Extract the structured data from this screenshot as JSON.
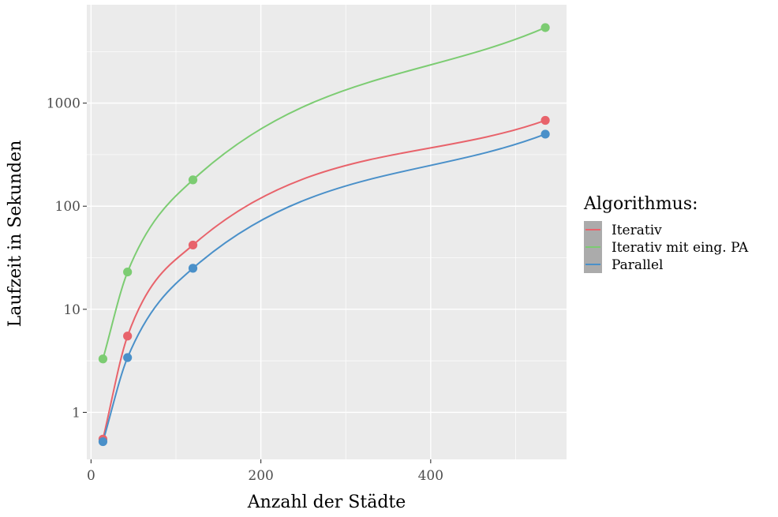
{
  "chart_data": {
    "type": "line",
    "xlabel": "Anzahl der Städte",
    "ylabel": "Laufzeit in Sekunden",
    "y_scale": "log10",
    "xlim": [
      -5,
      560
    ],
    "ylim": [
      0.35,
      9000
    ],
    "x_ticks": [
      0,
      200,
      400
    ],
    "x_tick_labels": [
      "0",
      "200",
      "400"
    ],
    "y_ticks": [
      1,
      10,
      100,
      1000
    ],
    "y_tick_labels": [
      "1",
      "10",
      "100",
      "1000"
    ],
    "grid": true,
    "legend": {
      "title": "Algorithmus:",
      "position": "right"
    },
    "series": [
      {
        "name": "Iterativ",
        "color": "#E8636B",
        "x": [
          14,
          43,
          120,
          535
        ],
        "y": [
          0.55,
          5.5,
          42,
          680
        ]
      },
      {
        "name": "Iterativ mit eing. PA",
        "color": "#7CCC72",
        "x": [
          14,
          43,
          120,
          535
        ],
        "y": [
          3.3,
          23,
          180,
          5400
        ]
      },
      {
        "name": "Parallel",
        "color": "#4A90C9",
        "x": [
          14,
          43,
          120,
          535
        ],
        "y": [
          0.52,
          3.4,
          25,
          500
        ]
      }
    ]
  }
}
